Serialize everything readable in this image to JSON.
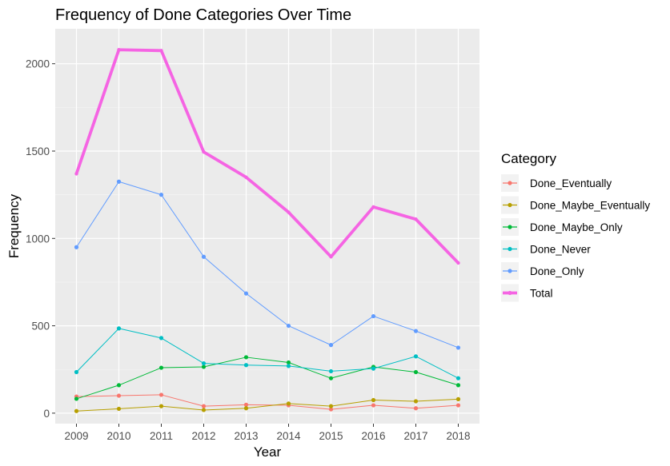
{
  "chart_data": {
    "type": "line",
    "title": "Frequency of Done Categories Over Time",
    "xlabel": "Year",
    "ylabel": "Frequency",
    "x": [
      2009,
      2010,
      2011,
      2012,
      2013,
      2014,
      2015,
      2016,
      2017,
      2018
    ],
    "x_tick_labels": [
      "2009",
      "2010",
      "2011",
      "2012",
      "2013",
      "2014",
      "2015",
      "2016",
      "2017",
      "2018"
    ],
    "y_ticks": [
      0,
      500,
      1000,
      1500,
      2000
    ],
    "y_tick_labels": [
      "0",
      "500",
      "1000",
      "1500",
      "2000"
    ],
    "ylim": [
      -60,
      2200
    ],
    "grid": true,
    "legend": {
      "title": "Category",
      "position": "right"
    },
    "series": [
      {
        "name": "Done_Eventually",
        "color": "#F8766D",
        "values": [
          95,
          100,
          105,
          40,
          48,
          45,
          22,
          45,
          28,
          45
        ]
      },
      {
        "name": "Done_Maybe_Eventually",
        "color": "#B79F00",
        "values": [
          12,
          25,
          40,
          18,
          28,
          55,
          40,
          75,
          68,
          80
        ]
      },
      {
        "name": "Done_Maybe_Only",
        "color": "#00BA38",
        "values": [
          82,
          160,
          260,
          265,
          320,
          290,
          200,
          265,
          235,
          160
        ]
      },
      {
        "name": "Done_Never",
        "color": "#00BFC4",
        "values": [
          235,
          485,
          430,
          285,
          275,
          270,
          240,
          255,
          325,
          200
        ]
      },
      {
        "name": "Done_Only",
        "color": "#619CFF",
        "values": [
          950,
          1325,
          1250,
          895,
          685,
          500,
          390,
          555,
          470,
          375
        ]
      },
      {
        "name": "Total",
        "color": "#F564E3",
        "values": [
          1370,
          2080,
          2075,
          1495,
          1350,
          1150,
          895,
          1180,
          1110,
          860
        ]
      }
    ]
  }
}
